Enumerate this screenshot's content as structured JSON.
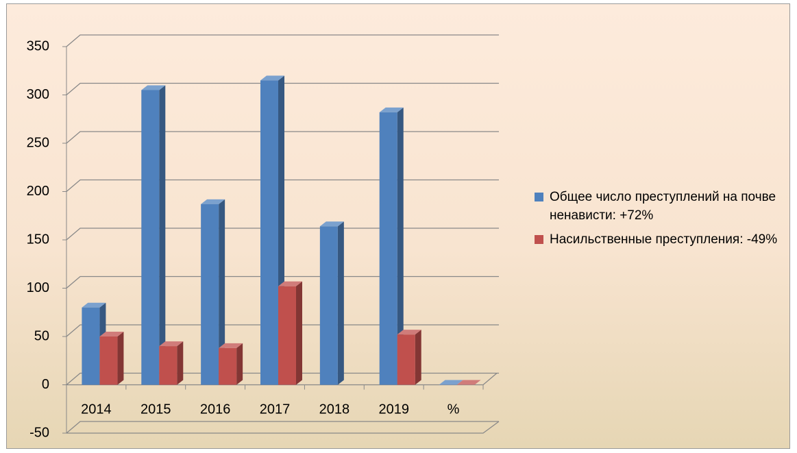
{
  "chart_data": {
    "type": "bar3d",
    "categories": [
      "2014",
      "2015",
      "2016",
      "2017",
      "2018",
      "2019",
      "%"
    ],
    "series": [
      {
        "name": "Общее число преступлений на почве ненависти: +72%",
        "color": "#4f81bd",
        "values": [
          80,
          305,
          187,
          315,
          164,
          282,
          0
        ]
      },
      {
        "name": "Насильственные преступления: -49%",
        "color": "#c0504d",
        "values": [
          50,
          40,
          38,
          102,
          null,
          52,
          0
        ]
      }
    ],
    "ylim": [
      -50,
      350
    ],
    "yticks": [
      -50,
      0,
      50,
      100,
      150,
      200,
      250,
      300,
      350
    ],
    "grid": true,
    "legend": "right"
  }
}
